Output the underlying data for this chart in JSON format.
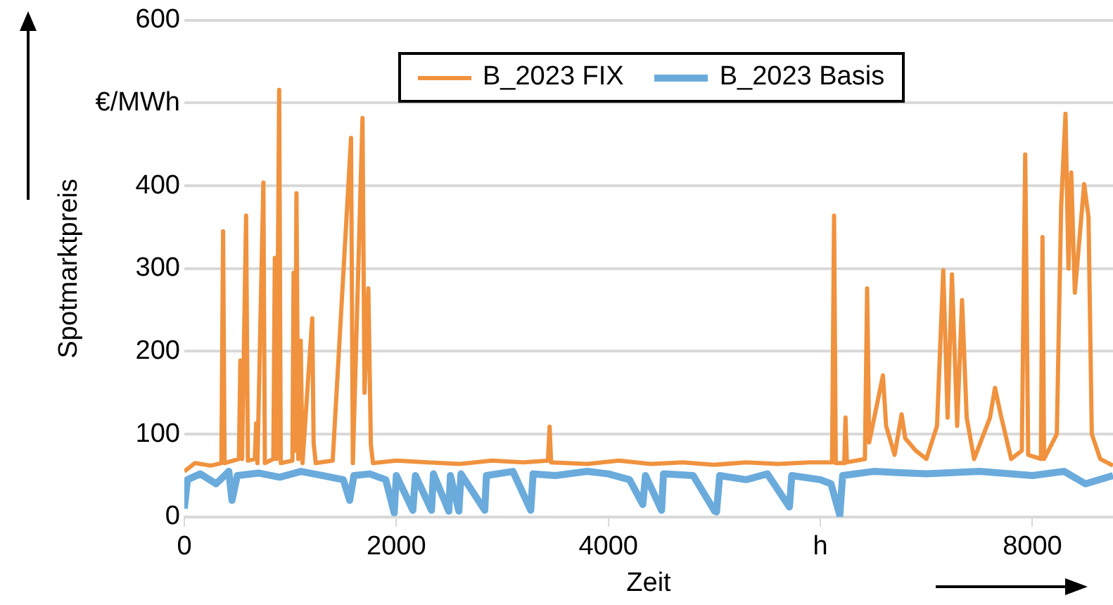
{
  "chart_data": {
    "type": "line",
    "xlabel": "Zeit",
    "ylabel": "Spotmarktpreis",
    "xlim": [
      0,
      8760
    ],
    "xticks": [
      0,
      2000,
      4000,
      {
        "value": 6000,
        "label": "h"
      },
      8000
    ],
    "ylim": [
      0,
      600
    ],
    "yticks": [
      0,
      100,
      200,
      300,
      400,
      {
        "value": 500,
        "label": "€/MWh"
      },
      600
    ],
    "grid": "y",
    "legend": "top right",
    "marker": "none",
    "line_style": "solid",
    "series": [
      {
        "name": "B_2023 FIX",
        "color": "#f0923e",
        "x": [
          0,
          100,
          250,
          350,
          366,
          380,
          515,
          529,
          545,
          583,
          600,
          665,
          678,
          690,
          746,
          760,
          840,
          854,
          870,
          895,
          910,
          1020,
          1031,
          1045,
          1058,
          1075,
          1098,
          1115,
          1207,
          1220,
          1240,
          1400,
          1573,
          1590,
          1681,
          1700,
          1736,
          1760,
          1780,
          2000,
          2300,
          2600,
          2900,
          3200,
          3430,
          3446,
          3460,
          3800,
          4100,
          4400,
          4700,
          5000,
          5300,
          5600,
          5900,
          6110,
          6129,
          6145,
          6225,
          6237,
          6250,
          6420,
          6441,
          6460,
          6590,
          6620,
          6700,
          6766,
          6800,
          6900,
          7000,
          7100,
          7159,
          7200,
          7241,
          7290,
          7336,
          7380,
          7450,
          7600,
          7647,
          7700,
          7800,
          7900,
          7932,
          7960,
          8080,
          8095,
          8110,
          8230,
          8271,
          8312,
          8340,
          8366,
          8400,
          8488,
          8529,
          8560,
          8640,
          8760
        ],
        "values": [
          55,
          65,
          62,
          65,
          345,
          65,
          70,
          189,
          70,
          364,
          68,
          70,
          113,
          65,
          404,
          65,
          70,
          313,
          70,
          516,
          65,
          68,
          295,
          80,
          391,
          70,
          213,
          65,
          240,
          89,
          65,
          68,
          458,
          65,
          482,
          150,
          276,
          87,
          65,
          68,
          66,
          64,
          68,
          66,
          68,
          109,
          66,
          64,
          68,
          64,
          66,
          63,
          66,
          64,
          66,
          66,
          364,
          65,
          65,
          120,
          66,
          70,
          276,
          90,
          171,
          110,
          75,
          124,
          95,
          80,
          70,
          110,
          298,
          120,
          293,
          110,
          262,
          120,
          70,
          120,
          156,
          124,
          70,
          80,
          438,
          75,
          70,
          338,
          70,
          100,
          375,
          487,
          300,
          416,
          271,
          402,
          362,
          100,
          70,
          62
        ]
      },
      {
        "name": "B_2023 Basis",
        "color": "#6aabdc",
        "x": [
          0,
          30,
          150,
          300,
          420,
          450,
          500,
          700,
          900,
          1100,
          1300,
          1500,
          1560,
          1600,
          1750,
          1900,
          1980,
          2000,
          2156,
          2180,
          2332,
          2350,
          2495,
          2510,
          2590,
          2610,
          2834,
          2850,
          3100,
          3268,
          3290,
          3500,
          3800,
          4000,
          4200,
          4325,
          4350,
          4502,
          4520,
          4800,
          5003,
          5020,
          5050,
          5300,
          5500,
          5708,
          5730,
          6000,
          6100,
          6183,
          6210,
          6500,
          7000,
          7500,
          8000,
          8300,
          8500,
          8760
        ],
        "values": [
          10,
          45,
          52,
          40,
          55,
          20,
          50,
          53,
          48,
          55,
          50,
          45,
          20,
          50,
          52,
          45,
          5,
          50,
          8,
          50,
          8,
          52,
          7,
          50,
          7,
          52,
          8,
          50,
          55,
          8,
          52,
          50,
          55,
          52,
          45,
          15,
          50,
          8,
          52,
          50,
          7,
          6,
          50,
          45,
          52,
          12,
          50,
          45,
          40,
          2,
          50,
          55,
          52,
          55,
          50,
          55,
          40,
          50
        ]
      }
    ]
  }
}
